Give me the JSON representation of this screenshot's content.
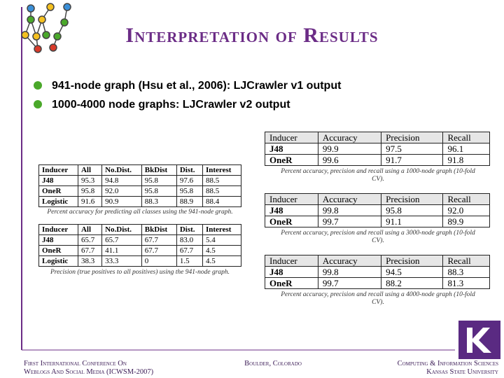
{
  "header": {
    "title": "Interpretation of Results"
  },
  "bullets": [
    "941-node graph (Hsu et al., 2006): LJCrawler v1 output",
    "1000-4000 node graphs: LJCrawler v2 output"
  ],
  "left_tables": [
    {
      "columns": [
        "Inducer",
        "All",
        "No.Dist.",
        "BkDist",
        "Dist.",
        "Interest"
      ],
      "rows": [
        [
          "J48",
          "95.3",
          "94.8",
          "95.8",
          "97.6",
          "88.5"
        ],
        [
          "OneR",
          "95.8",
          "92.0",
          "95.8",
          "95.8",
          "88.5"
        ],
        [
          "Logistic",
          "91.6",
          "90.9",
          "88.3",
          "88.9",
          "88.4"
        ]
      ],
      "caption": "Percent accuracy for predicting all classes using the 941-node graph."
    },
    {
      "columns": [
        "Inducer",
        "All",
        "No.Dist.",
        "BkDist",
        "Dist.",
        "Interest"
      ],
      "rows": [
        [
          "J48",
          "65.7",
          "65.7",
          "67.7",
          "83.0",
          "5.4"
        ],
        [
          "OneR",
          "67.7",
          "41.1",
          "67.7",
          "67.7",
          "4.5"
        ],
        [
          "Logistic",
          "38.3",
          "33.3",
          "0",
          "1.5",
          "4.5"
        ]
      ],
      "caption": "Precision (true positives to all positives) using the 941-node graph."
    }
  ],
  "right_tables": [
    {
      "columns": [
        "Inducer",
        "Accuracy",
        "Precision",
        "Recall"
      ],
      "rows": [
        [
          "J48",
          "99.9",
          "97.5",
          "96.1"
        ],
        [
          "OneR",
          "99.6",
          "91.7",
          "91.8"
        ]
      ],
      "caption": "Percent accuracy, precision and recall using a 1000-node graph (10-fold CV)."
    },
    {
      "columns": [
        "Inducer",
        "Accuracy",
        "Precision",
        "Recall"
      ],
      "rows": [
        [
          "J48",
          "99.8",
          "95.8",
          "92.0"
        ],
        [
          "OneR",
          "99.7",
          "91.1",
          "89.9"
        ]
      ],
      "caption": "Percent accuracy, precision and recall using a 3000-node graph (10-fold CV)."
    },
    {
      "columns": [
        "Inducer",
        "Accuracy",
        "Precision",
        "Recall"
      ],
      "rows": [
        [
          "J48",
          "99.8",
          "94.5",
          "88.3"
        ],
        [
          "OneR",
          "99.7",
          "88.2",
          "81.3"
        ]
      ],
      "caption": "Percent accuracy, precision and recall using a 4000-node graph (10-fold CV)."
    }
  ],
  "footer": {
    "left": [
      "First International Conference On",
      "Weblogs And Social Media (ICWSM-2007)"
    ],
    "center": "Boulder, Colorado",
    "right": [
      "Computing & Information Sciences",
      "Kansas State University"
    ]
  }
}
